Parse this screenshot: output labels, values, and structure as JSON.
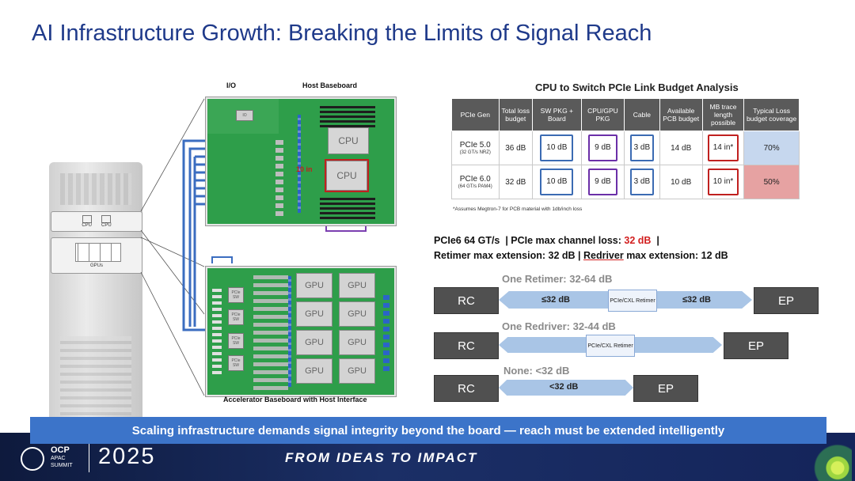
{
  "title": "AI Infrastructure Growth: Breaking the Limits of Signal Reach",
  "figure": {
    "io_label": "I/O",
    "host_label": "Host Baseboard",
    "accel_label": "Accelerator Baseboard with Host Interface",
    "cpu_label": "CPU",
    "gpu_label": "GPU",
    "gpus_label": "GPUs",
    "trace_label": "10 in",
    "pcie_sw_label": "PCIe SW",
    "rack_cpu_label": "CPU"
  },
  "table": {
    "title": "CPU to Switch PCIe Link Budget Analysis",
    "headers": [
      "PCIe Gen",
      "Total loss budget",
      "SW PKG + Board",
      "CPU/GPU PKG",
      "Cable",
      "Available PCB budget",
      "MB trace length possible",
      "Typical Loss budget coverage"
    ],
    "rows": [
      {
        "gen": "PCIe 5.0",
        "gen_sub": "(32 GT/s NRZ)",
        "total": "36 dB",
        "sw": "10 dB",
        "cpu": "9 dB",
        "cable": "3 dB",
        "pcb": "14 dB",
        "trace": "14 in*",
        "coverage": "70%"
      },
      {
        "gen": "PCIe 6.0",
        "gen_sub": "(64 GT/s PAM4)",
        "total": "32 dB",
        "sw": "10 dB",
        "cpu": "9 dB",
        "cable": "3 dB",
        "pcb": "10 dB",
        "trace": "10 in*",
        "coverage": "50%"
      }
    ],
    "footnote": "*Assumes Megtron-7 for PCB material with 1db/inch loss"
  },
  "specs": {
    "line1_a": "PCIe6 64 GT/s  | PCIe max channel loss: ",
    "line1_red": "32 dB",
    "line1_b": "  |",
    "line2_a": "Retimer max extension: 32 dB | ",
    "line2_u": "Redriver",
    "line2_b": " max extension: 12 dB"
  },
  "topologies": [
    {
      "label": "One Retimer: 32-64 dB",
      "rc": "RC",
      "ep": "EP",
      "left": "≤32 dB",
      "right": "≤32 dB",
      "device": "PCIe/CXL Retimer"
    },
    {
      "label": "One Redriver: 32-44 dB",
      "rc": "RC",
      "ep": "EP",
      "device": "PCIe/CXL Retimer"
    },
    {
      "label": "None: <32 dB",
      "rc": "RC",
      "ep": "EP",
      "mid": "<32 dB"
    }
  ],
  "banner": "Scaling infrastructure demands signal integrity beyond the board — reach must be extended intelligently",
  "footer": {
    "logo": "OCP",
    "logo_sub1": "APAC",
    "logo_sub2": "SUMMIT",
    "year": "2025",
    "slogan": "FROM IDEAS TO IMPACT"
  }
}
